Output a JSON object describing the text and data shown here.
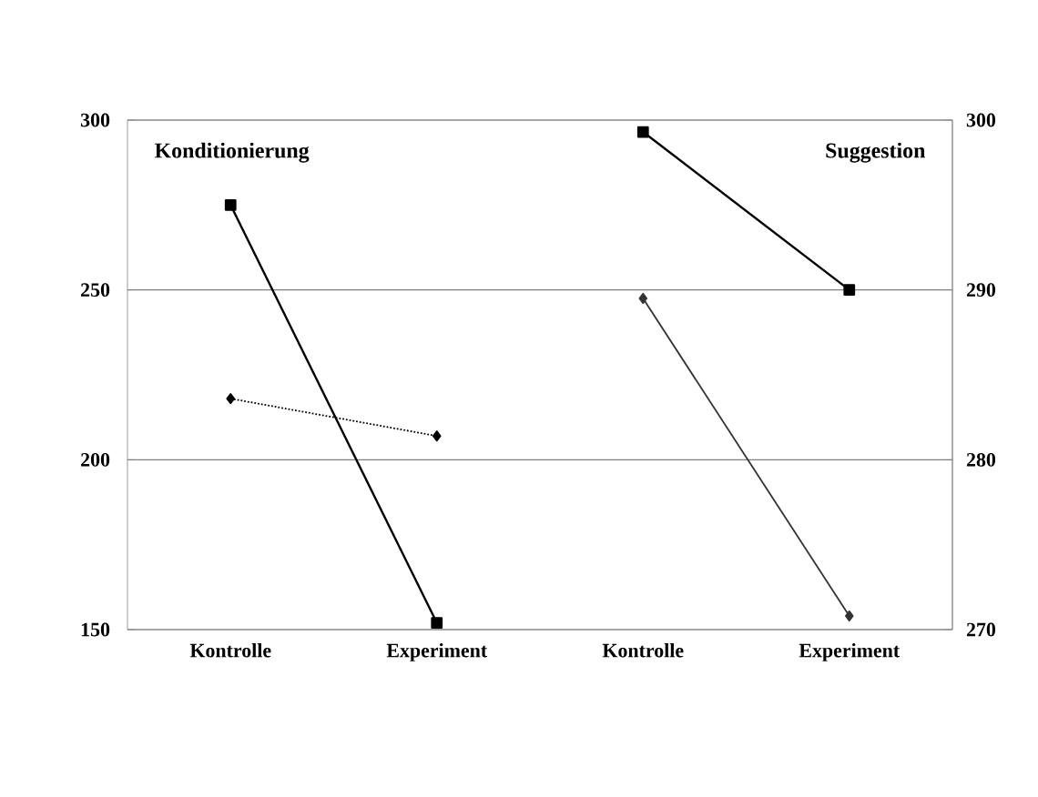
{
  "chart_data": {
    "type": "line",
    "categories": [
      "Kontrolle",
      "Experiment",
      "Kontrolle",
      "Experiment"
    ],
    "series": [
      {
        "color": "#000000",
        "values": [
          275,
          152,
          null,
          null
        ],
        "marker": "square",
        "line_style": "solid"
      },
      {
        "color": "#000000",
        "values": [
          218,
          207,
          null,
          null
        ],
        "marker": "diamond",
        "line_style": "dotted"
      },
      {
        "color": "#000000",
        "values": [
          null,
          null,
          299.3,
          290
        ],
        "marker": "square",
        "line_style": "solid",
        "axis": "y2"
      },
      {
        "color": "#333333",
        "values": [
          null,
          null,
          289.5,
          270.8
        ],
        "marker": "diamond",
        "line_style": "solid",
        "axis": "y2"
      }
    ],
    "ylim": [
      150,
      300
    ],
    "yticks": [
      150,
      200,
      250,
      300
    ],
    "y2lim": [
      270,
      300
    ],
    "y2ticks": [
      270,
      280,
      290,
      300
    ],
    "grid": "y",
    "annotations": [
      "Konditionierung",
      "Suggestion"
    ]
  }
}
